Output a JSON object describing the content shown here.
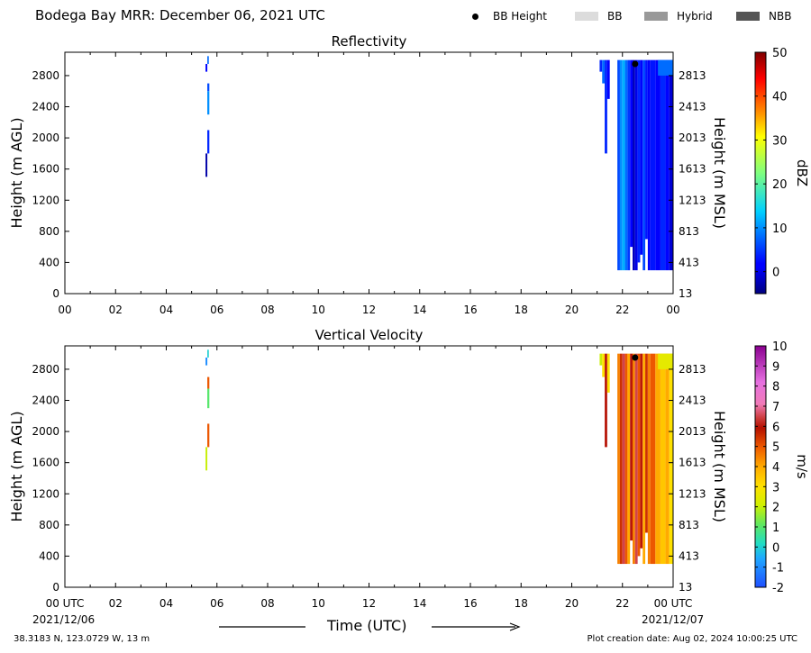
{
  "header": {
    "title": "Bodega Bay MRR:  December 06, 2021 UTC",
    "legend": [
      {
        "label": "BB Height",
        "marker": "dot",
        "color": "#000000"
      },
      {
        "label": "BB",
        "marker": "box",
        "color": "#dcdcdc"
      },
      {
        "label": "Hybrid",
        "marker": "box",
        "color": "#999999"
      },
      {
        "label": "NBB",
        "marker": "box",
        "color": "#555555"
      }
    ]
  },
  "footer": {
    "location": "38.3183 N, 123.0729 W, 13 m",
    "creation": "Plot creation date: Aug 02, 2024 10:00:25 UTC",
    "xlabel": "Time (UTC)",
    "start_date": "2021/12/06",
    "end_date": "2021/12/07"
  },
  "chart_data": [
    {
      "type": "heatmap",
      "title": "Reflectivity",
      "ylabel": "Height (m AGL)",
      "ylabel_right": "Height (m MSL)",
      "colorbar_label": "dBZ",
      "x_ticks": [
        "00",
        "02",
        "04",
        "06",
        "08",
        "10",
        "12",
        "14",
        "16",
        "18",
        "20",
        "22",
        "00"
      ],
      "xlim_hours": [
        0,
        24
      ],
      "y_ticks": [
        0,
        400,
        800,
        1200,
        1600,
        2000,
        2400,
        2800
      ],
      "y_ticks_right": [
        13,
        413,
        813,
        1213,
        1613,
        2013,
        2413,
        2813
      ],
      "ylim": [
        0,
        3100
      ],
      "colorbar": {
        "min": -5,
        "max": 50,
        "ticks": [
          0,
          10,
          20,
          30,
          40,
          50
        ],
        "cmap": "jet"
      },
      "bb_height": [
        {
          "time_hours": 22.5,
          "height_m": 2950
        }
      ],
      "cells": [
        {
          "t0": 5.55,
          "t1": 5.62,
          "h0": 2850,
          "h1": 2950,
          "v": 2
        },
        {
          "t0": 5.62,
          "t1": 5.68,
          "h0": 2950,
          "h1": 3050,
          "v": 8
        },
        {
          "t0": 5.62,
          "t1": 5.7,
          "h0": 2600,
          "h1": 2700,
          "v": 6
        },
        {
          "t0": 5.62,
          "t1": 5.7,
          "h0": 2300,
          "h1": 2600,
          "v": 10
        },
        {
          "t0": 5.62,
          "t1": 5.7,
          "h0": 1800,
          "h1": 2100,
          "v": 4
        },
        {
          "t0": 5.55,
          "t1": 5.62,
          "h0": 1500,
          "h1": 1800,
          "v": -3
        },
        {
          "t0": 21.1,
          "t1": 21.2,
          "h0": 2850,
          "h1": 3000,
          "v": 4
        },
        {
          "t0": 21.2,
          "t1": 21.3,
          "h0": 2700,
          "h1": 3000,
          "v": 8
        },
        {
          "t0": 21.3,
          "t1": 21.4,
          "h0": 1800,
          "h1": 3000,
          "v": 4
        },
        {
          "t0": 21.4,
          "t1": 21.5,
          "h0": 2500,
          "h1": 3000,
          "v": 2
        },
        {
          "t0": 21.8,
          "t1": 21.9,
          "h0": 300,
          "h1": 3000,
          "v": 6
        },
        {
          "t0": 21.9,
          "t1": 22.0,
          "h0": 300,
          "h1": 3000,
          "v": 10
        },
        {
          "t0": 22.0,
          "t1": 22.1,
          "h0": 300,
          "h1": 3000,
          "v": 12
        },
        {
          "t0": 22.1,
          "t1": 22.2,
          "h0": 300,
          "h1": 3000,
          "v": 8
        },
        {
          "t0": 22.2,
          "t1": 22.3,
          "h0": 300,
          "h1": 3000,
          "v": 5
        },
        {
          "t0": 22.3,
          "t1": 22.4,
          "h0": 600,
          "h1": 3000,
          "v": 1
        },
        {
          "t0": 22.4,
          "t1": 22.5,
          "h0": 300,
          "h1": 3000,
          "v": -2
        },
        {
          "t0": 22.5,
          "t1": 22.6,
          "h0": 300,
          "h1": 3000,
          "v": 0
        },
        {
          "t0": 22.6,
          "t1": 22.7,
          "h0": 400,
          "h1": 3000,
          "v": 4
        },
        {
          "t0": 22.7,
          "t1": 22.8,
          "h0": 500,
          "h1": 3000,
          "v": 2
        },
        {
          "t0": 22.8,
          "t1": 22.9,
          "h0": 300,
          "h1": 3000,
          "v": 6
        },
        {
          "t0": 22.9,
          "t1": 23.0,
          "h0": 700,
          "h1": 3000,
          "v": 3
        },
        {
          "t0": 23.0,
          "t1": 23.1,
          "h0": 300,
          "h1": 3000,
          "v": 1
        },
        {
          "t0": 23.1,
          "t1": 23.3,
          "h0": 300,
          "h1": 3000,
          "v": 3
        },
        {
          "t0": 23.3,
          "t1": 23.5,
          "h0": 300,
          "h1": 3000,
          "v": 1
        },
        {
          "t0": 23.5,
          "t1": 23.7,
          "h0": 300,
          "h1": 3000,
          "v": 4
        },
        {
          "t0": 23.7,
          "t1": 23.85,
          "h0": 300,
          "h1": 3000,
          "v": 2
        },
        {
          "t0": 23.85,
          "t1": 24.0,
          "h0": 300,
          "h1": 3000,
          "v": -1
        },
        {
          "t0": 23.4,
          "t1": 24.0,
          "h0": 2800,
          "h1": 3000,
          "v": 8
        }
      ]
    },
    {
      "type": "heatmap",
      "title": "Vertical Velocity",
      "ylabel": "Height (m AGL)",
      "ylabel_right": "Height (m MSL)",
      "colorbar_label": "m/s",
      "x_ticks": [
        "00 UTC",
        "02",
        "04",
        "06",
        "08",
        "10",
        "12",
        "14",
        "16",
        "18",
        "20",
        "22",
        "00 UTC"
      ],
      "xlim_hours": [
        0,
        24
      ],
      "y_ticks": [
        0,
        400,
        800,
        1200,
        1600,
        2000,
        2400,
        2800
      ],
      "y_ticks_right": [
        13,
        413,
        813,
        1213,
        1613,
        2013,
        2413,
        2813
      ],
      "ylim": [
        0,
        3100
      ],
      "colorbar": {
        "min": -2,
        "max": 10,
        "ticks": [
          -2,
          -1,
          0,
          1,
          2,
          3,
          4,
          5,
          6,
          7,
          8,
          9,
          10
        ],
        "cmap": "velocity"
      },
      "bb_height": [
        {
          "time_hours": 22.5,
          "height_m": 2950
        }
      ],
      "cells": [
        {
          "t0": 5.55,
          "t1": 5.62,
          "h0": 2850,
          "h1": 2950,
          "v": -1
        },
        {
          "t0": 5.62,
          "t1": 5.68,
          "h0": 2950,
          "h1": 3050,
          "v": 0
        },
        {
          "t0": 5.62,
          "t1": 5.7,
          "h0": 2550,
          "h1": 2700,
          "v": 5
        },
        {
          "t0": 5.62,
          "t1": 5.7,
          "h0": 2300,
          "h1": 2550,
          "v": 1
        },
        {
          "t0": 5.62,
          "t1": 5.7,
          "h0": 1800,
          "h1": 2100,
          "v": 5
        },
        {
          "t0": 5.55,
          "t1": 5.62,
          "h0": 1500,
          "h1": 1800,
          "v": 2
        },
        {
          "t0": 21.1,
          "t1": 21.2,
          "h0": 2850,
          "h1": 3000,
          "v": 2
        },
        {
          "t0": 21.2,
          "t1": 21.3,
          "h0": 2700,
          "h1": 3000,
          "v": 3
        },
        {
          "t0": 21.3,
          "t1": 21.4,
          "h0": 1800,
          "h1": 3000,
          "v": 6
        },
        {
          "t0": 21.4,
          "t1": 21.5,
          "h0": 2500,
          "h1": 3000,
          "v": 3
        },
        {
          "t0": 21.8,
          "t1": 21.9,
          "h0": 300,
          "h1": 3000,
          "v": 4.5
        },
        {
          "t0": 21.9,
          "t1": 22.0,
          "h0": 300,
          "h1": 3000,
          "v": 5.5
        },
        {
          "t0": 22.0,
          "t1": 22.1,
          "h0": 300,
          "h1": 3000,
          "v": 6.5
        },
        {
          "t0": 22.1,
          "t1": 22.2,
          "h0": 300,
          "h1": 3000,
          "v": 5
        },
        {
          "t0": 22.2,
          "t1": 22.3,
          "h0": 300,
          "h1": 3000,
          "v": 4
        },
        {
          "t0": 22.3,
          "t1": 22.4,
          "h0": 600,
          "h1": 3000,
          "v": 6
        },
        {
          "t0": 22.4,
          "t1": 22.5,
          "h0": 300,
          "h1": 3000,
          "v": 4.5
        },
        {
          "t0": 22.5,
          "t1": 22.6,
          "h0": 300,
          "h1": 3000,
          "v": 6.5
        },
        {
          "t0": 22.6,
          "t1": 22.7,
          "h0": 400,
          "h1": 3000,
          "v": 5
        },
        {
          "t0": 22.7,
          "t1": 22.8,
          "h0": 500,
          "h1": 3000,
          "v": 6
        },
        {
          "t0": 22.8,
          "t1": 22.9,
          "h0": 300,
          "h1": 3000,
          "v": 4
        },
        {
          "t0": 22.9,
          "t1": 23.0,
          "h0": 700,
          "h1": 3000,
          "v": 5.5
        },
        {
          "t0": 23.0,
          "t1": 23.1,
          "h0": 300,
          "h1": 3000,
          "v": 4.5
        },
        {
          "t0": 23.1,
          "t1": 23.3,
          "h0": 300,
          "h1": 3000,
          "v": 5
        },
        {
          "t0": 23.3,
          "t1": 23.5,
          "h0": 300,
          "h1": 3000,
          "v": 4
        },
        {
          "t0": 23.5,
          "t1": 23.7,
          "h0": 300,
          "h1": 3000,
          "v": 3.5
        },
        {
          "t0": 23.7,
          "t1": 23.85,
          "h0": 300,
          "h1": 3000,
          "v": 4
        },
        {
          "t0": 23.85,
          "t1": 24.0,
          "h0": 300,
          "h1": 3000,
          "v": 3
        },
        {
          "t0": 23.4,
          "t1": 24.0,
          "h0": 2800,
          "h1": 3000,
          "v": 2.5
        }
      ]
    }
  ]
}
